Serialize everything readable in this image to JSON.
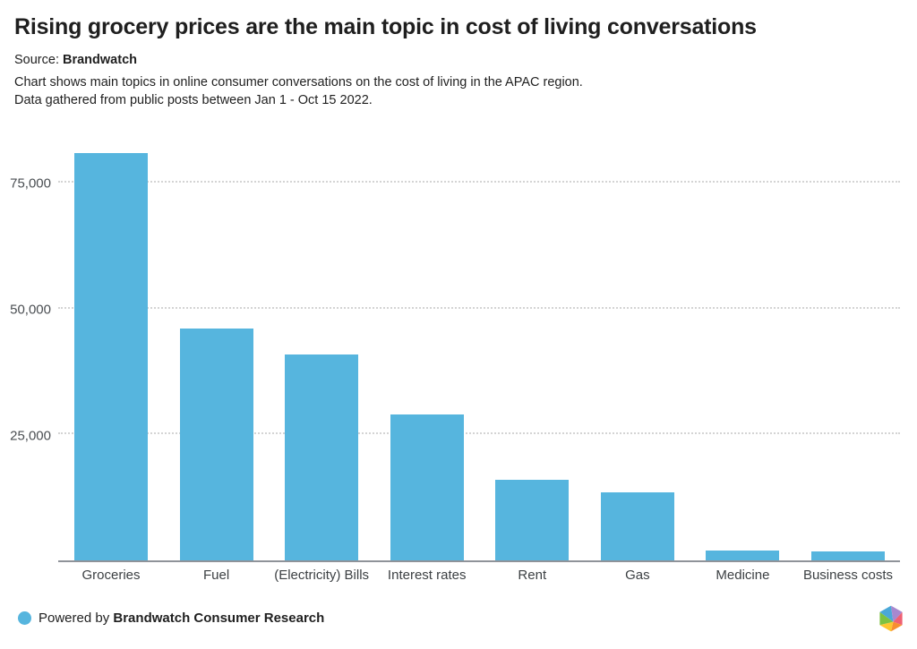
{
  "header": {
    "title": "Rising grocery prices are the main topic in cost of living conversations",
    "source_prefix": "Source: ",
    "source_name": "Brandwatch",
    "description_line1": "Chart shows main topics in online consumer conversations on the cost of living in the APAC region.",
    "description_line2": "Data gathered from public posts between Jan 1 - Oct 15 2022."
  },
  "chart_data": {
    "type": "bar",
    "title": "Rising grocery prices are the main topic in cost of living conversations",
    "categories": [
      "Groceries",
      "Fuel",
      "(Electricity) Bills",
      "Interest rates",
      "Rent",
      "Gas",
      "Medicine",
      "Business costs"
    ],
    "values": [
      81000,
      46000,
      41000,
      29000,
      16000,
      13500,
      2000,
      1800
    ],
    "xlabel": "",
    "ylabel": "",
    "ylim": [
      0,
      82000
    ],
    "yticks": [
      25000,
      50000,
      75000
    ],
    "ytick_labels": [
      "25,000",
      "50,000",
      "75,000"
    ],
    "grid": "horizontal-dotted",
    "legend": "none",
    "bar_color": "#56b5de",
    "axis_line_color": "#8f9399"
  },
  "footer": {
    "powered_prefix": "Powered by ",
    "powered_name": "Brandwatch Consumer Research",
    "dot_color": "#56b5de"
  },
  "icons": {
    "brandwatch_logo": "multicolor-hexagon",
    "logo_colors": [
      "#4aa8d8",
      "#a788cf",
      "#ef6073",
      "#f78f31",
      "#fdc62f",
      "#7dc242"
    ]
  }
}
